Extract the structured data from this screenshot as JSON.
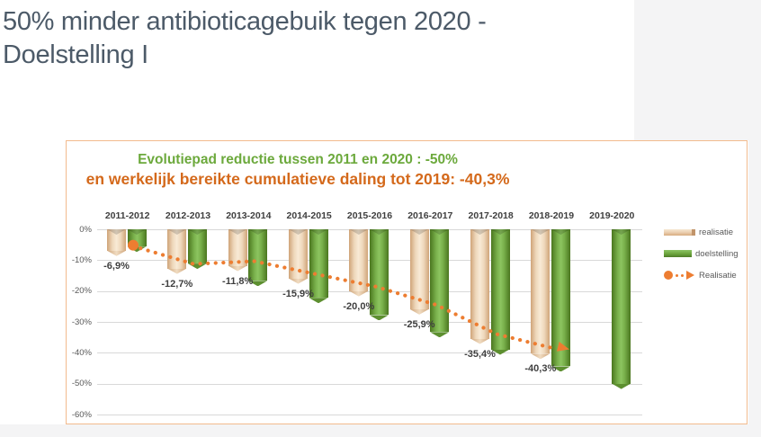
{
  "page": {
    "title_line1": "50% minder antibioticagebuik tegen 2020 -",
    "title_line2": "Doelstelling I",
    "title_color": "#4c5a68"
  },
  "chart": {
    "title_line1": "Evolutiepad reductie tussen 2011 en 2020 : -50%",
    "title_line2": "en werkelijk bereikte cumulatieve daling tot 2019: -40,3%",
    "title_line1_color": "#6ca93c",
    "title_line2_color": "#d4691b",
    "border_color": "#f2bb8e",
    "legend": [
      {
        "label": "realisatie",
        "swatch": "bar-tan"
      },
      {
        "label": "doelstelling",
        "swatch": "bar-green"
      },
      {
        "label": "Realisatie",
        "swatch": "dotted-line"
      }
    ]
  },
  "chart_data": {
    "type": "bar",
    "categories": [
      "2011-2012",
      "2012-2013",
      "2013-2014",
      "2014-2015",
      "2015-2016",
      "2016-2017",
      "2017-2018",
      "2018-2019",
      "2019-2020"
    ],
    "series": [
      {
        "name": "realisatie",
        "type": "bar",
        "color_key": "tan",
        "color": "#eed7bb",
        "values": [
          -6.9,
          -12.7,
          -11.8,
          -15.9,
          -20.0,
          -25.9,
          -35.4,
          -40.3,
          null
        ],
        "data_labels": [
          "-6,9%",
          "-12,7%",
          "-11,8%",
          "-15,9%",
          "-20,0%",
          "-25,9%",
          "-35,4%",
          "-40,3%",
          ""
        ]
      },
      {
        "name": "doelstelling",
        "type": "bar",
        "color_key": "green",
        "color": "#6fa73f",
        "values": [
          -5.6,
          -11.1,
          -16.7,
          -22.2,
          -27.8,
          -33.3,
          -38.9,
          -44.4,
          -50.0
        ]
      },
      {
        "name": "Realisatie",
        "type": "dotted-line",
        "color": "#ed7d31",
        "values": [
          -6.9,
          -12.7,
          -11.8,
          -15.9,
          -20.0,
          -25.9,
          -35.4,
          -40.3,
          null
        ]
      }
    ],
    "yticks": [
      "0%",
      "-10%",
      "-20%",
      "-30%",
      "-40%",
      "-50%",
      "-60%"
    ],
    "ylim": [
      -60,
      0
    ],
    "unit": "%",
    "grid": true,
    "legend_position": "right",
    "x_labels_position": "top"
  }
}
